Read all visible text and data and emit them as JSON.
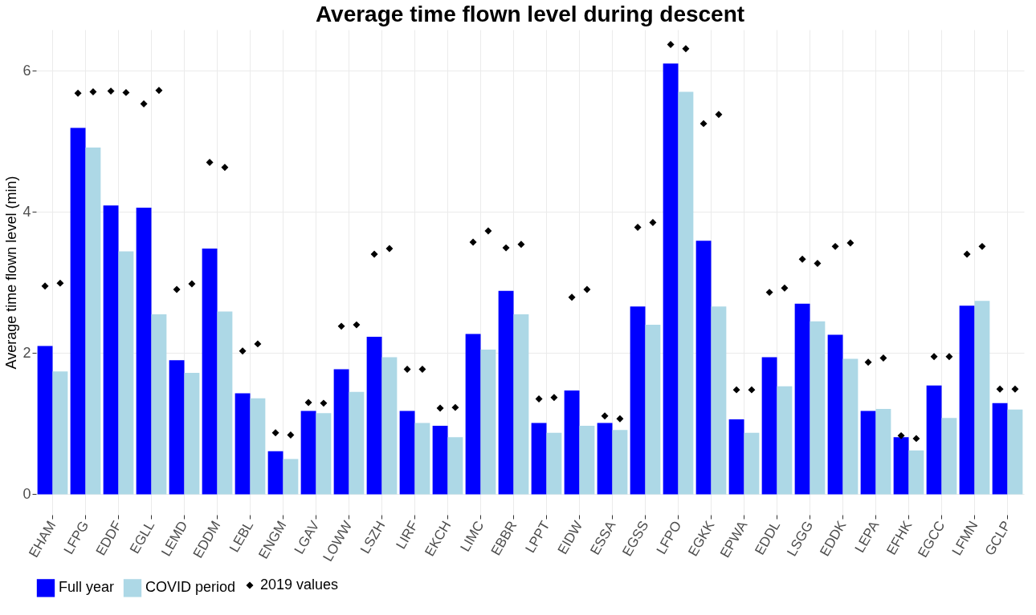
{
  "chart_data": {
    "type": "bar",
    "title": "Average time flown level during descent",
    "ylabel": "Average time flown level (min)",
    "categories": [
      "EHAM",
      "LFPG",
      "EDDF",
      "EGLL",
      "LEMD",
      "EDDM",
      "LEBL",
      "ENGM",
      "LGAV",
      "LOWW",
      "LSZH",
      "LIRF",
      "EKCH",
      "LIMC",
      "EBBR",
      "LPPT",
      "EIDW",
      "ESSA",
      "EGSS",
      "LFPO",
      "EGKK",
      "EPWA",
      "EDDL",
      "LSGG",
      "EDDK",
      "LEPA",
      "EFHK",
      "EGCC",
      "LFMN",
      "GCLP"
    ],
    "series": [
      {
        "name": "Full year",
        "color": "#0000ff",
        "values": [
          2.1,
          5.19,
          4.09,
          4.06,
          1.9,
          3.48,
          1.43,
          0.61,
          1.18,
          1.77,
          2.23,
          1.18,
          0.97,
          2.27,
          2.88,
          1.01,
          1.47,
          1.01,
          2.66,
          6.1,
          3.59,
          1.06,
          1.94,
          2.7,
          2.26,
          1.18,
          0.81,
          1.54,
          2.67,
          1.29
        ]
      },
      {
        "name": "COVID period",
        "color": "#add8e6",
        "values": [
          1.74,
          4.91,
          3.44,
          2.55,
          1.72,
          2.59,
          1.36,
          0.5,
          1.15,
          1.45,
          1.94,
          1.01,
          0.81,
          2.05,
          2.55,
          0.87,
          0.97,
          0.91,
          2.4,
          5.7,
          2.66,
          0.87,
          1.53,
          2.45,
          1.92,
          1.21,
          0.62,
          1.08,
          2.74,
          1.2
        ]
      },
      {
        "name": "2019 values",
        "type": "scatter",
        "marker": "diamond",
        "color": "#000000",
        "values": [
          2.95,
          5.68,
          5.71,
          5.53,
          2.9,
          4.7,
          2.03,
          0.87,
          1.3,
          2.38,
          3.4,
          1.77,
          1.22,
          3.57,
          3.49,
          1.35,
          2.79,
          1.11,
          3.78,
          6.37,
          5.25,
          1.48,
          2.86,
          3.33,
          3.51,
          1.87,
          0.83,
          1.95,
          3.4,
          1.49
        ]
      },
      {
        "type": "scatter",
        "marker": "diamond",
        "color": "#000000",
        "values": [
          2.99,
          5.7,
          5.69,
          5.72,
          2.98,
          4.63,
          2.13,
          0.84,
          1.29,
          2.4,
          3.48,
          1.77,
          1.23,
          3.73,
          3.54,
          1.37,
          2.9,
          1.07,
          3.85,
          6.31,
          5.38,
          1.48,
          2.92,
          3.27,
          3.56,
          1.93,
          0.79,
          1.95,
          3.51,
          1.49
        ]
      }
    ],
    "ylim": [
      -0.29,
      6.58
    ],
    "yticks": [
      0,
      2,
      4,
      6
    ],
    "grid": true,
    "legend": "bottom"
  }
}
